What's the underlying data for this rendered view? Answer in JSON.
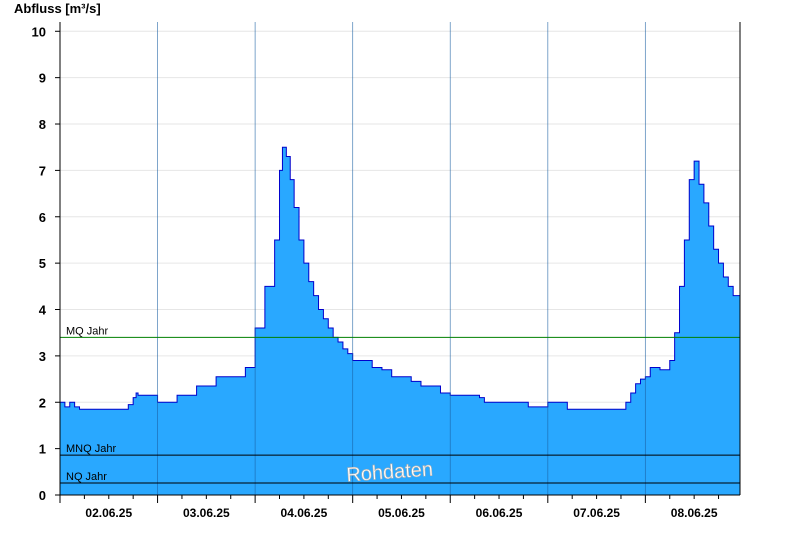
{
  "chart_data": {
    "type": "area",
    "ylabel": "Abfluss [m³/s]",
    "ylim": [
      0,
      10.2
    ],
    "yticks": [
      0,
      1,
      2,
      3,
      4,
      5,
      6,
      7,
      8,
      9,
      10
    ],
    "xlim": [
      1.5,
      8.47
    ],
    "xticks": [
      {
        "value": 2,
        "label": "02.06.25"
      },
      {
        "value": 3,
        "label": "03.06.25"
      },
      {
        "value": 4,
        "label": "04.06.25"
      },
      {
        "value": 5,
        "label": "05.06.25"
      },
      {
        "value": 6,
        "label": "06.06.25"
      },
      {
        "value": 7,
        "label": "07.06.25"
      },
      {
        "value": 8,
        "label": "08.06.25"
      }
    ],
    "grid": true,
    "fill_color": "#29a8ff",
    "line_color": "#0000cc",
    "x": [
      1.5,
      1.55,
      1.6,
      1.65,
      1.7,
      1.75,
      1.8,
      1.85,
      1.9,
      1.95,
      2.0,
      2.05,
      2.1,
      2.15,
      2.2,
      2.25,
      2.28,
      2.3,
      2.35,
      2.4,
      2.45,
      2.5,
      2.55,
      2.6,
      2.7,
      2.8,
      2.9,
      3.0,
      3.05,
      3.1,
      3.2,
      3.3,
      3.4,
      3.5,
      3.6,
      3.7,
      3.75,
      3.78,
      3.82,
      3.86,
      3.9,
      3.95,
      4.0,
      4.05,
      4.1,
      4.15,
      4.2,
      4.25,
      4.3,
      4.35,
      4.4,
      4.45,
      4.5,
      4.6,
      4.7,
      4.8,
      4.9,
      5.0,
      5.1,
      5.2,
      5.3,
      5.4,
      5.5,
      5.6,
      5.7,
      5.8,
      5.85,
      5.9,
      5.95,
      6.0,
      6.1,
      6.2,
      6.3,
      6.4,
      6.5,
      6.6,
      6.7,
      6.8,
      6.9,
      7.0,
      7.1,
      7.2,
      7.3,
      7.35,
      7.4,
      7.45,
      7.5,
      7.55,
      7.6,
      7.65,
      7.7,
      7.75,
      7.8,
      7.85,
      7.9,
      7.95,
      8.0,
      8.05,
      8.1,
      8.15,
      8.2,
      8.25,
      8.3,
      8.35,
      8.4,
      8.47
    ],
    "y": [
      2.0,
      1.9,
      2.0,
      1.9,
      1.85,
      1.85,
      1.85,
      1.85,
      1.85,
      1.85,
      1.85,
      1.85,
      1.85,
      1.85,
      1.95,
      2.1,
      2.2,
      2.15,
      2.15,
      2.15,
      2.15,
      2.0,
      2.0,
      2.0,
      2.15,
      2.15,
      2.35,
      2.35,
      2.35,
      2.55,
      2.55,
      2.55,
      2.75,
      3.6,
      4.5,
      5.5,
      7.0,
      7.5,
      7.3,
      6.8,
      6.2,
      5.5,
      5.0,
      4.6,
      4.3,
      4.0,
      3.8,
      3.6,
      3.4,
      3.3,
      3.15,
      3.05,
      2.9,
      2.9,
      2.75,
      2.7,
      2.55,
      2.55,
      2.45,
      2.35,
      2.35,
      2.2,
      2.15,
      2.15,
      2.15,
      2.1,
      2.0,
      2.0,
      2.0,
      2.0,
      2.0,
      2.0,
      1.9,
      1.9,
      2.0,
      2.0,
      1.85,
      1.85,
      1.85,
      1.85,
      1.85,
      1.85,
      2.0,
      2.2,
      2.4,
      2.5,
      2.55,
      2.75,
      2.75,
      2.7,
      2.7,
      2.9,
      3.5,
      4.5,
      5.5,
      6.8,
      7.2,
      6.7,
      6.3,
      5.8,
      5.3,
      5.0,
      4.7,
      4.5,
      4.3,
      4.2
    ],
    "reference_lines": [
      {
        "label": "MQ Jahr",
        "value": 3.4,
        "color": "#008000"
      },
      {
        "label": "MNQ Jahr",
        "value": 0.86,
        "color": "#000000"
      },
      {
        "label": "NQ Jahr",
        "value": 0.26,
        "color": "#000000"
      }
    ],
    "annotation": "Rohdaten"
  }
}
